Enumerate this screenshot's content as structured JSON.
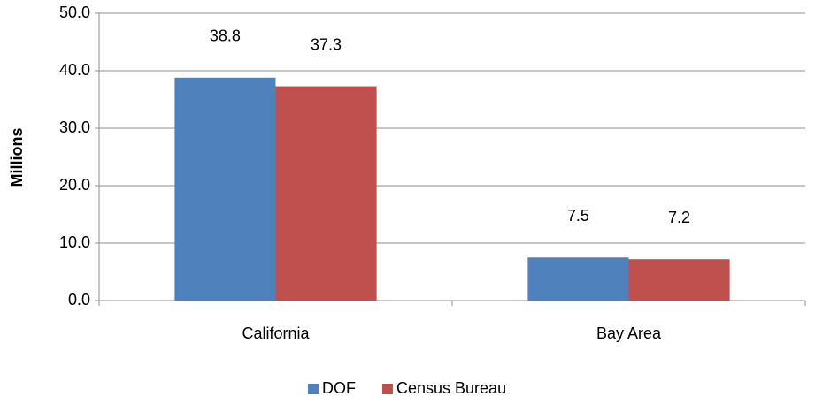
{
  "chart_data": {
    "type": "bar",
    "y_label": "Millions",
    "categories": [
      "California",
      "Bay Area"
    ],
    "series": [
      {
        "name": "DOF",
        "color": "#4f81bd",
        "values": [
          38.8,
          7.5
        ]
      },
      {
        "name": "Census Bureau",
        "color": "#c0504d",
        "values": [
          37.3,
          7.2
        ]
      }
    ],
    "ylim": [
      0,
      50
    ],
    "yticks": [
      {
        "value": 0,
        "label": "0.0"
      },
      {
        "value": 10,
        "label": "10.0"
      },
      {
        "value": 20,
        "label": "20.0"
      },
      {
        "value": 30,
        "label": "30.0"
      },
      {
        "value": 40,
        "label": "40.0"
      },
      {
        "value": 50,
        "label": "50.0"
      }
    ],
    "grid": true,
    "legend": "bottom"
  }
}
